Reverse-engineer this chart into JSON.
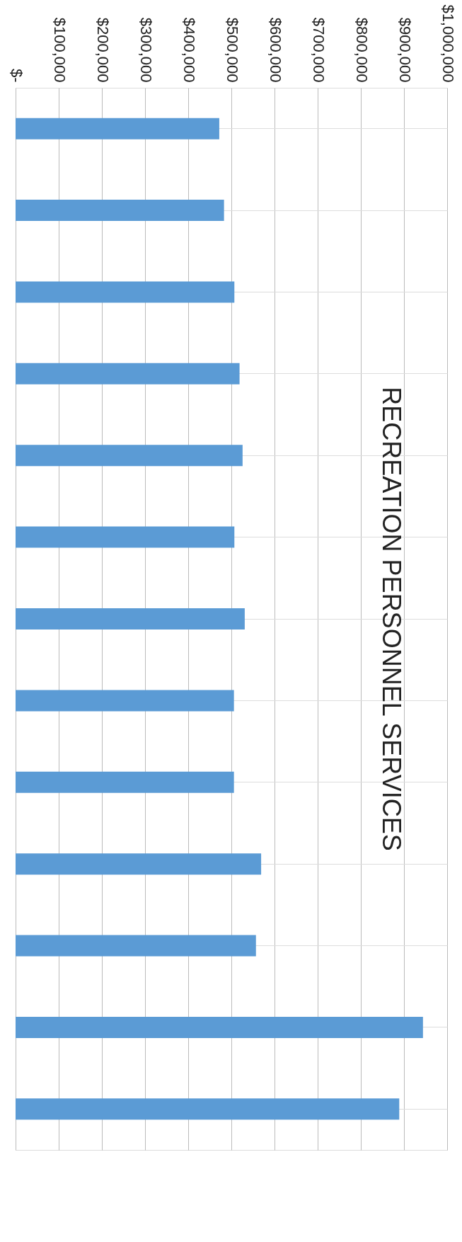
{
  "chart_data": {
    "type": "bar",
    "orientation": "horizontal",
    "title": "RECREATION PERSONNEL SERVICES",
    "categories": [
      null,
      null,
      null,
      null,
      null,
      null,
      null,
      null,
      null,
      null,
      null,
      null,
      null
    ],
    "values": [
      472000,
      483000,
      507000,
      519000,
      526000,
      507000,
      531000,
      506000,
      506000,
      569000,
      557000,
      944000,
      889000
    ],
    "color": "#5b9bd5",
    "xlim": [
      0,
      1000000
    ],
    "xticks": [
      {
        "value": 1000000,
        "label": "$1,000,000"
      },
      {
        "value": 900000,
        "label": "$900,000"
      },
      {
        "value": 800000,
        "label": "$800,000"
      },
      {
        "value": 700000,
        "label": "$700,000"
      },
      {
        "value": 600000,
        "label": "$600,000"
      },
      {
        "value": 500000,
        "label": "$500,000"
      },
      {
        "value": 400000,
        "label": "$400,000"
      },
      {
        "value": 300000,
        "label": "$300,000"
      },
      {
        "value": 200000,
        "label": "$200,000"
      },
      {
        "value": 100000,
        "label": "$100,000"
      },
      {
        "value": 0,
        "label": "$-"
      }
    ],
    "grid": true
  }
}
